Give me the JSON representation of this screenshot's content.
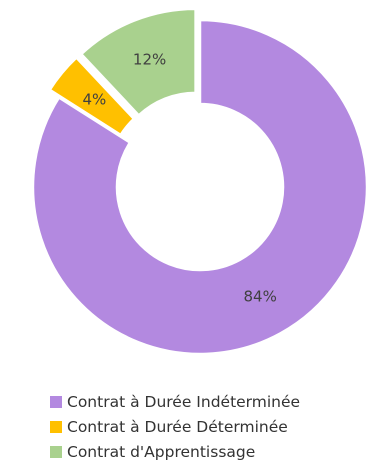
{
  "chart_data": {
    "type": "pie",
    "style": "doughnut",
    "categories": [
      "Contrat à Durée Indéterminée",
      "Contrat à Durée Déterminée",
      "Contrat d'Apprentissage"
    ],
    "values": [
      84,
      4,
      12
    ],
    "value_labels": [
      "84%",
      "4%",
      "12%"
    ],
    "colors": [
      "#b389e0",
      "#ffc000",
      "#a9d18e"
    ],
    "slice_order": "clockwise from top",
    "highlighted_slices": [
      "Contrat à Durée Déterminée",
      "Contrat d'Apprentissage"
    ],
    "legend": {
      "placement": "bottom",
      "entries": [
        "Contrat à Durée Indéterminée",
        "Contrat à Durée Déterminée",
        "Contrat d'Apprentissage"
      ]
    },
    "title": ""
  }
}
